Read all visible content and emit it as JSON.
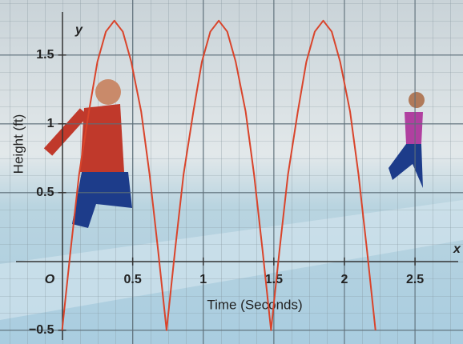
{
  "chart_data": {
    "type": "line",
    "x_label": "Time (Seconds)",
    "y_label": "Height (ft)",
    "x_axis_letter": "x",
    "y_axis_letter": "y",
    "origin_label": "O",
    "xlim": [
      -0.44,
      2.84
    ],
    "ylim": [
      -0.6,
      1.9
    ],
    "xticks": [
      0.5,
      1,
      1.5,
      2,
      2.5
    ],
    "yticks": [
      {
        "value": -0.5,
        "label": "−0.5"
      },
      0.5,
      1,
      1.5
    ],
    "grid": true,
    "series": [
      {
        "color": "#d9442b",
        "x": [
          0,
          0.06,
          0.12,
          0.19,
          0.25,
          0.31,
          0.37,
          0.43,
          0.49,
          0.56,
          0.62,
          0.68,
          0.74,
          0.8,
          0.86,
          0.93,
          0.99,
          1.05,
          1.11,
          1.17,
          1.23,
          1.3,
          1.36,
          1.42,
          1.48,
          1.54,
          1.6,
          1.67,
          1.73,
          1.79,
          1.85,
          1.91,
          1.97,
          2.04,
          2.1,
          2.16,
          2.22
        ],
        "values": [
          -0.5,
          0.08,
          0.63,
          1.09,
          1.45,
          1.67,
          1.75,
          1.67,
          1.45,
          1.09,
          0.63,
          0.08,
          -0.5,
          0.08,
          0.63,
          1.09,
          1.45,
          1.67,
          1.75,
          1.67,
          1.45,
          1.09,
          0.63,
          0.08,
          -0.5,
          0.08,
          0.63,
          1.09,
          1.45,
          1.67,
          1.75,
          1.67,
          1.45,
          1.09,
          0.63,
          0.08,
          -0.5
        ]
      }
    ]
  }
}
